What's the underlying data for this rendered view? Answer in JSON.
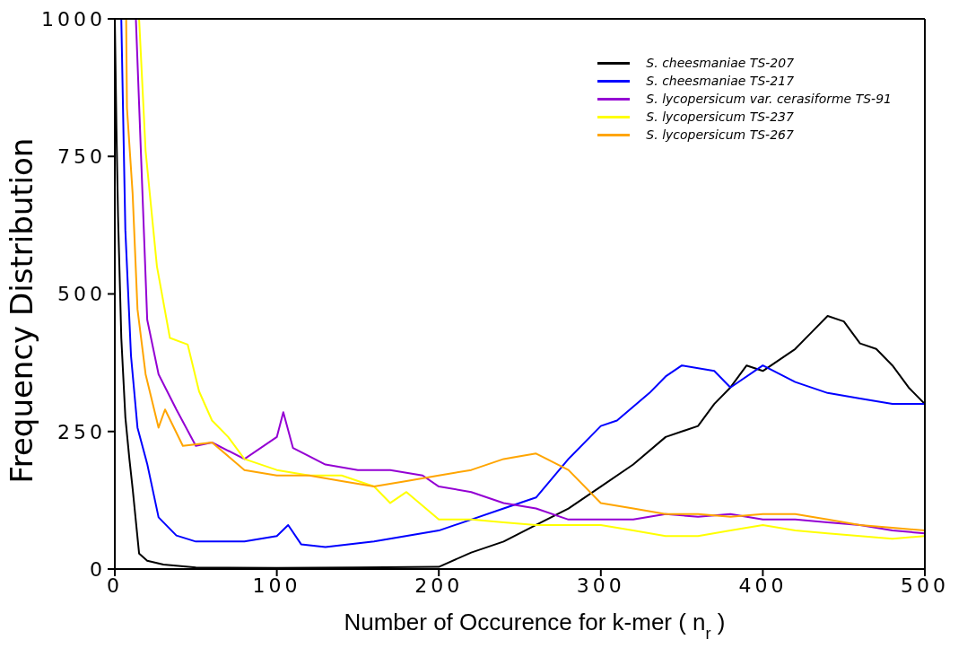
{
  "chart_data": {
    "type": "line",
    "xlabel": "Number of Occurence for k-mer ( n$_{r}$ )",
    "ylabel": "Frequency Distribution",
    "xlim": [
      0,
      500
    ],
    "xticks": [
      0,
      100,
      200,
      300,
      400,
      500
    ],
    "ylim": [
      0,
      1000
    ],
    "yticks": [
      0,
      250,
      500,
      750,
      1000
    ],
    "legend": "top right",
    "marker": "none",
    "line_style": "solid",
    "series": [
      {
        "name": "S. cheesmaniae TS-207",
        "color": "#000000",
        "x": [
          0,
          1,
          2,
          4,
          6.5,
          9,
          11,
          15,
          20,
          30,
          50,
          100,
          150,
          200,
          220,
          240,
          260,
          280,
          300,
          320,
          340,
          360,
          370,
          380,
          390,
          400,
          410,
          420,
          430,
          440,
          450,
          460,
          470,
          480,
          490,
          500
        ],
        "values": [
          1000,
          800,
          640,
          420,
          276,
          200,
          146,
          28,
          15,
          8,
          3,
          2,
          3,
          4,
          30,
          50,
          80,
          110,
          150,
          190,
          240,
          260,
          300,
          330,
          370,
          360,
          380,
          400,
          430,
          460,
          450,
          410,
          400,
          370,
          330,
          300
        ]
      },
      {
        "name": "S. cheesmaniae TS-217",
        "color": "#0000ff",
        "x": [
          4,
          6.5,
          10,
          14,
          20,
          27,
          38,
          50,
          80,
          100,
          107,
          115,
          130,
          160,
          200,
          220,
          240,
          260,
          280,
          300,
          310,
          330,
          340,
          350,
          370,
          380,
          400,
          420,
          440,
          460,
          480,
          500
        ],
        "values": [
          1000,
          616,
          387,
          257,
          191,
          94,
          61,
          50,
          50,
          60,
          80,
          45,
          40,
          50,
          70,
          90,
          110,
          130,
          200,
          260,
          270,
          320,
          350,
          370,
          360,
          330,
          370,
          340,
          320,
          310,
          300,
          300
        ]
      },
      {
        "name": "S. lycopersicum var. cerasiforme TS-91",
        "color": "#9400d3",
        "x": [
          13,
          20,
          27,
          38,
          50,
          60,
          80,
          100,
          104,
          110,
          130,
          150,
          170,
          190,
          200,
          220,
          240,
          260,
          280,
          300,
          320,
          340,
          360,
          380,
          400,
          420,
          440,
          460,
          480,
          500
        ],
        "values": [
          1000,
          453,
          354,
          290,
          224,
          230,
          200,
          240,
          285,
          220,
          190,
          180,
          180,
          170,
          150,
          140,
          120,
          110,
          90,
          90,
          90,
          100,
          95,
          100,
          90,
          90,
          85,
          80,
          70,
          65
        ]
      },
      {
        "name": "S. lycopersicum TS-237",
        "color": "#ffff00",
        "x": [
          15,
          19,
          26,
          34,
          45,
          52,
          60,
          70,
          80,
          100,
          120,
          140,
          160,
          170,
          180,
          200,
          220,
          240,
          260,
          280,
          300,
          320,
          340,
          360,
          380,
          400,
          420,
          440,
          460,
          480,
          500
        ],
        "values": [
          1000,
          760,
          550,
          420,
          408,
          323,
          270,
          240,
          200,
          180,
          170,
          170,
          150,
          120,
          140,
          90,
          90,
          85,
          80,
          80,
          80,
          70,
          60,
          60,
          70,
          80,
          70,
          65,
          60,
          55,
          60
        ]
      },
      {
        "name": "S. lycopersicum TS-267",
        "color": "#ffa500",
        "x": [
          7,
          7.5,
          11,
          14,
          19,
          27,
          31,
          42,
          60,
          80,
          100,
          120,
          140,
          160,
          180,
          200,
          220,
          240,
          260,
          280,
          300,
          320,
          340,
          360,
          380,
          400,
          420,
          440,
          460,
          480,
          500
        ],
        "values": [
          1000,
          838,
          682,
          472,
          354,
          257,
          290,
          224,
          230,
          180,
          170,
          170,
          160,
          150,
          160,
          170,
          180,
          200,
          210,
          180,
          120,
          110,
          100,
          100,
          95,
          100,
          100,
          90,
          80,
          75,
          70
        ]
      }
    ]
  }
}
